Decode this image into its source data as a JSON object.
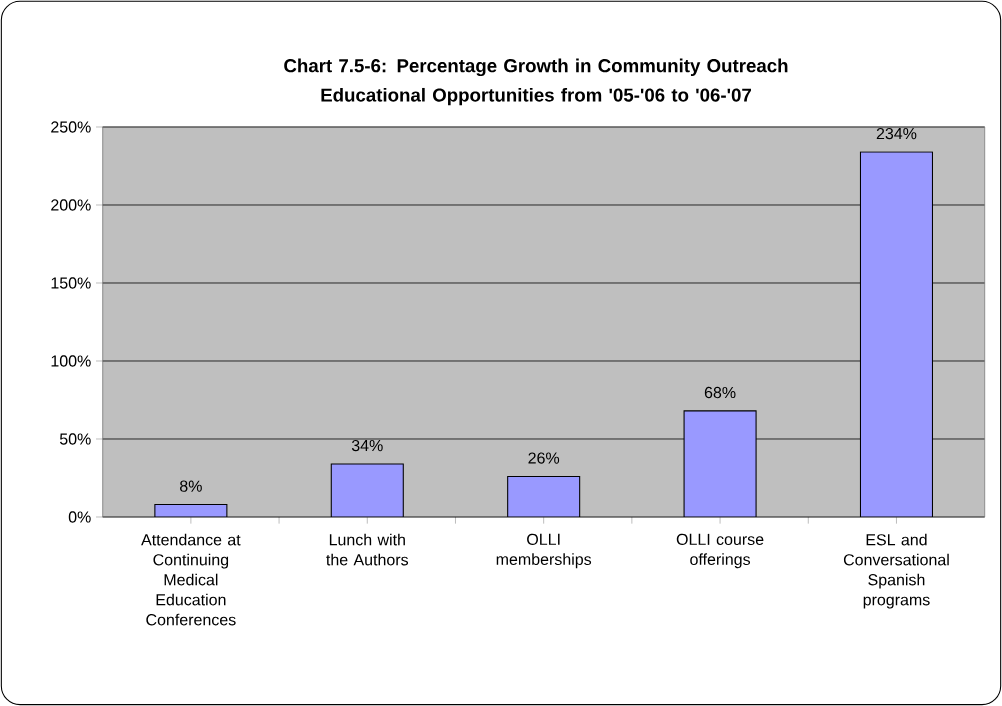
{
  "chart_data": {
    "type": "bar",
    "title": "Chart 7.5-6: Percentage Growth in Community Outreach Educational Opportunities from '05-'06 to '06-'07",
    "categories": [
      "Attendance at Continuing Medical Education Conferences",
      "Lunch with the Authors",
      "OLLI memberships",
      "OLLI course offerings",
      "ESL and Conversational Spanish programs"
    ],
    "values": [
      8,
      34,
      26,
      68,
      234
    ],
    "value_labels": [
      "8%",
      "34%",
      "26%",
      "68%",
      "234%"
    ],
    "color": "#9999ff",
    "ylim": [
      0,
      250
    ],
    "yticks": [
      {
        "value": 0,
        "label": "0%"
      },
      {
        "value": 50,
        "label": "50%"
      },
      {
        "value": 100,
        "label": "100%"
      },
      {
        "value": 150,
        "label": "150%"
      },
      {
        "value": 200,
        "label": "200%"
      },
      {
        "value": 250,
        "label": "250%"
      }
    ],
    "grid": "y"
  }
}
